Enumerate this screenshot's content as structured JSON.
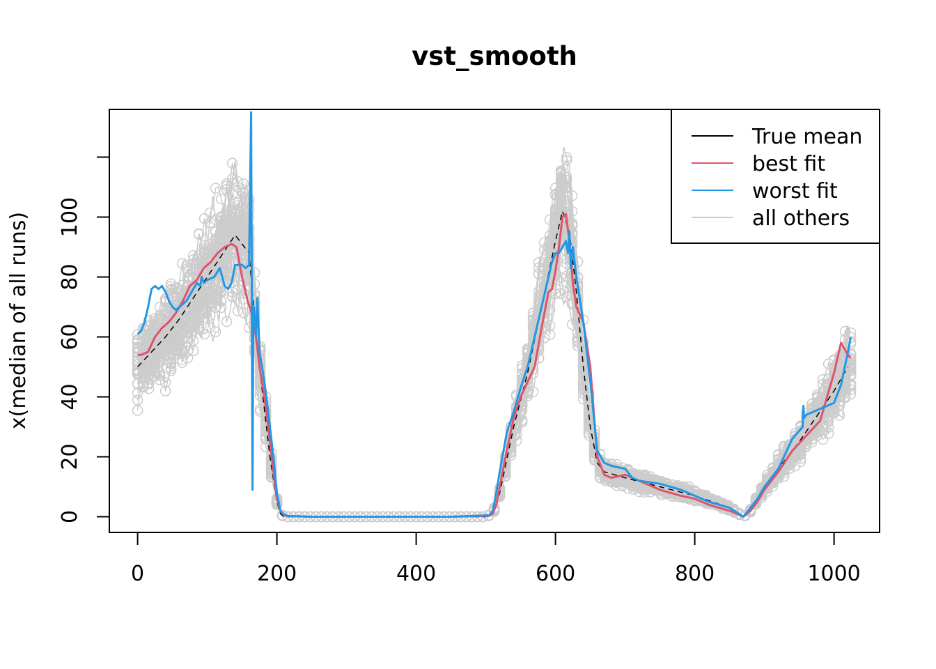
{
  "chart_data": {
    "type": "line",
    "title": "vst_smooth",
    "xlabel": "",
    "ylabel": "x(median of all runs)",
    "xlim": [
      0,
      1024
    ],
    "ylim": [
      -5,
      136
    ],
    "xticks": [
      0,
      200,
      400,
      600,
      800,
      1000
    ],
    "yticks": [
      0,
      20,
      40,
      60,
      80,
      100,
      120
    ],
    "ytick_labels": [
      "0",
      "20",
      "40",
      "60",
      "80",
      "100",
      ""
    ],
    "legend": {
      "position": "top-right",
      "entries": [
        {
          "label": "True mean",
          "color": "#000000"
        },
        {
          "label": "best fit",
          "color": "#DF536B"
        },
        {
          "label": "worst fit",
          "color": "#2297E6"
        },
        {
          "label": "all others",
          "color": "#CCCCCC"
        }
      ]
    },
    "series": [
      {
        "name": "True mean",
        "color": "#000000",
        "style": "dashed",
        "x": [
          0,
          20,
          40,
          60,
          80,
          100,
          120,
          140,
          160,
          170,
          180,
          190,
          200,
          205,
          210,
          300,
          400,
          500,
          510,
          520,
          540,
          560,
          580,
          600,
          610,
          620,
          630,
          640,
          650,
          660,
          670,
          700,
          750,
          800,
          850,
          870,
          880,
          900,
          950,
          1000,
          1020
        ],
        "y": [
          50,
          55,
          60,
          66,
          73,
          80,
          87,
          94,
          88,
          60,
          40,
          20,
          5,
          1,
          0,
          0,
          0,
          0,
          1,
          8,
          30,
          48,
          70,
          92,
          102,
          95,
          75,
          50,
          30,
          18,
          15,
          13,
          10,
          7,
          3,
          0,
          2,
          10,
          25,
          42,
          50
        ]
      },
      {
        "name": "best fit",
        "color": "#DF536B",
        "style": "solid",
        "x": [
          0,
          5,
          15,
          25,
          35,
          45,
          55,
          65,
          75,
          85,
          95,
          105,
          115,
          125,
          135,
          142,
          150,
          158,
          165,
          170,
          175,
          180,
          185,
          190,
          195,
          200,
          205,
          210,
          215,
          250,
          350,
          450,
          505,
          510,
          515,
          520,
          530,
          540,
          550,
          560,
          570,
          580,
          590,
          595,
          600,
          605,
          610,
          615,
          620,
          625,
          630,
          640,
          650,
          660,
          670,
          680,
          700,
          720,
          750,
          780,
          800,
          820,
          850,
          870,
          880,
          890,
          900,
          920,
          940,
          960,
          980,
          990,
          1000,
          1010,
          1020,
          1024
        ],
        "y": [
          54,
          54,
          55,
          60,
          63,
          65,
          68,
          72,
          77,
          79,
          83,
          85,
          88,
          90,
          91,
          90,
          80,
          72,
          67,
          60,
          50,
          43,
          35,
          25,
          15,
          6,
          2,
          0.5,
          0.2,
          0,
          0,
          0,
          0.3,
          1,
          4,
          10,
          22,
          33,
          40,
          45,
          50,
          63,
          75,
          76,
          82,
          90,
          100,
          101,
          92,
          78,
          70,
          65,
          50,
          20,
          14,
          13,
          14,
          12,
          9,
          7,
          6,
          4,
          2,
          0,
          2,
          5,
          9,
          15,
          22,
          27,
          32,
          40,
          48,
          58,
          54,
          53
        ]
      },
      {
        "name": "worst fit",
        "color": "#2297E6",
        "style": "solid",
        "x": [
          0,
          5,
          10,
          15,
          20,
          25,
          30,
          35,
          40,
          45,
          50,
          55,
          60,
          70,
          80,
          85,
          90,
          92,
          95,
          100,
          110,
          118,
          125,
          130,
          135,
          140,
          145,
          150,
          155,
          160,
          163,
          165,
          166,
          167,
          170,
          172,
          175,
          180,
          185,
          190,
          195,
          200,
          205,
          210,
          215,
          250,
          350,
          450,
          505,
          510,
          515,
          520,
          530,
          540,
          550,
          560,
          570,
          580,
          585,
          590,
          595,
          600,
          605,
          610,
          615,
          618,
          620,
          622,
          625,
          630,
          640,
          650,
          660,
          670,
          680,
          700,
          710,
          720,
          750,
          780,
          800,
          820,
          850,
          870,
          880,
          890,
          900,
          920,
          940,
          955,
          956,
          957,
          960,
          980,
          1000,
          1010,
          1020,
          1024
        ],
        "y": [
          61,
          62,
          65,
          70,
          76,
          77,
          76,
          77,
          75,
          72,
          70,
          69,
          70,
          72,
          76,
          78,
          77,
          80,
          78,
          79,
          80,
          83,
          77,
          76,
          78,
          84,
          84,
          84,
          83,
          84,
          135,
          9,
          65,
          70,
          60,
          73,
          55,
          48,
          40,
          30,
          20,
          8,
          2,
          0.8,
          0.3,
          0,
          0,
          0,
          0.5,
          2,
          8,
          15,
          28,
          35,
          43,
          50,
          60,
          70,
          75,
          80,
          85,
          88,
          88,
          90,
          92,
          88,
          95,
          83,
          90,
          80,
          65,
          45,
          22,
          18,
          17,
          16,
          13,
          12,
          11,
          9,
          7,
          5,
          3,
          0,
          3,
          6,
          10,
          16,
          26,
          30,
          37,
          33,
          34,
          36,
          38,
          44,
          55,
          60
        ]
      }
    ],
    "others_note": "all others: ~30 grey replicate curves with points, spread around the true mean"
  }
}
